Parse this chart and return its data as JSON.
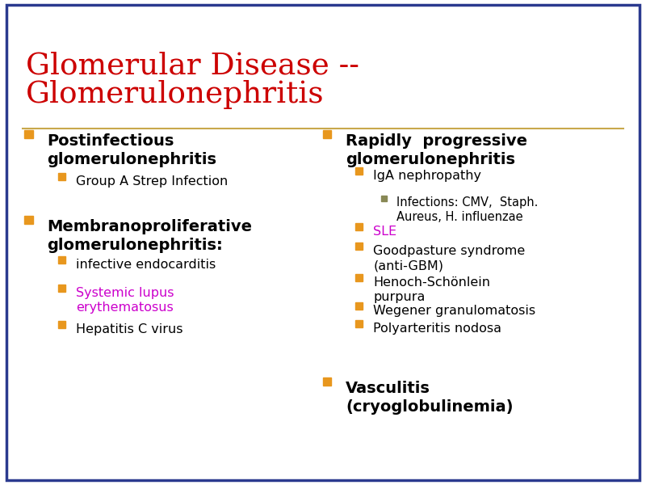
{
  "title_line1": "Glomerular Disease --",
  "title_line2": "Glomerulonephritis",
  "title_color": "#cc0000",
  "bg_color": "#ffffff",
  "border_color": "#2b3a8f",
  "separator_color": "#c8a84b",
  "bullet_color": "#e8971e",
  "bullet_color2": "#e8971e",
  "bullet_color3": "#888855",
  "text_color": "#000000",
  "purple_color": "#cc00cc",
  "left_items": [
    {
      "level": 1,
      "text": "Postinfectious\nglomerulonephritis",
      "color": "#000000",
      "bold": true
    },
    {
      "level": 2,
      "text": "Group A Strep Infection",
      "color": "#000000",
      "bold": false
    },
    {
      "level": 1,
      "text": "Membranoproliferative\nglomerulonephritis:",
      "color": "#000000",
      "bold": true
    },
    {
      "level": 2,
      "text": "infective endocarditis",
      "color": "#000000",
      "bold": false
    },
    {
      "level": 2,
      "text": "Systemic lupus\nerythematosus",
      "color": "#cc00cc",
      "bold": false
    },
    {
      "level": 2,
      "text": "Hepatitis C virus",
      "color": "#000000",
      "bold": false
    }
  ],
  "right_items": [
    {
      "level": 1,
      "text": "Rapidly  progressive\nglomerulonephritis",
      "color": "#000000",
      "bold": true
    },
    {
      "level": 2,
      "text": "IgA nephropathy",
      "color": "#000000",
      "bold": false
    },
    {
      "level": 3,
      "text": "Infections: CMV,  Staph.\nAureus, H. influenzae",
      "color": "#000000",
      "bold": false
    },
    {
      "level": 2,
      "text": "SLE",
      "color": "#cc00cc",
      "bold": false
    },
    {
      "level": 2,
      "text": "Goodpasture syndrome\n(anti-GBM)",
      "color": "#000000",
      "bold": false
    },
    {
      "level": 2,
      "text": "Henoch-Schönlein\npurpura",
      "color": "#000000",
      "bold": false
    },
    {
      "level": 2,
      "text": "Wegener granulomatosis",
      "color": "#000000",
      "bold": false
    },
    {
      "level": 2,
      "text": "Polyarteritis nodosa",
      "color": "#000000",
      "bold": false
    },
    {
      "level": 1,
      "text": "Vasculitis\n(cryoglobulinemia)",
      "color": "#000000",
      "bold": true
    }
  ]
}
